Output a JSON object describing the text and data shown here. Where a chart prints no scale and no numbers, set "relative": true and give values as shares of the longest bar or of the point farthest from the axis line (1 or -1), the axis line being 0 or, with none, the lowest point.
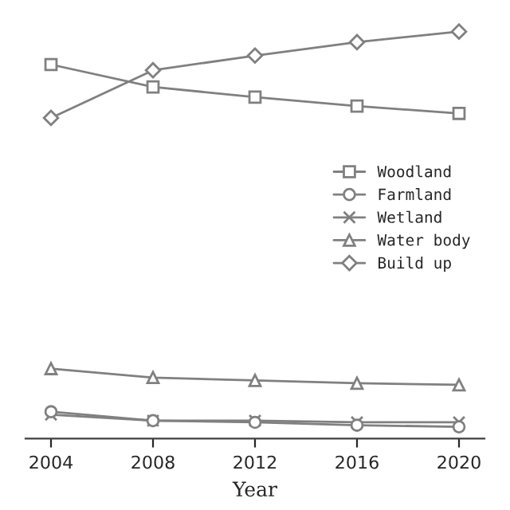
{
  "chart_data": {
    "type": "line",
    "relative": true,
    "xlabel": "Year",
    "x": [
      2004,
      2008,
      2012,
      2016,
      2020
    ],
    "xlim": [
      2003,
      2021
    ],
    "xticks": [
      2004,
      2008,
      2012,
      2016,
      2020
    ],
    "legend": "right",
    "grid": false,
    "series": [
      {
        "name": "Woodland",
        "color": "#808080",
        "marker": "square",
        "values": [
          0.919,
          0.864,
          0.839,
          0.817,
          0.799
        ]
      },
      {
        "name": "Farmland",
        "color": "#808080",
        "marker": "circle",
        "values": [
          0.066,
          0.044,
          0.04,
          0.033,
          0.029
        ]
      },
      {
        "name": "Wetland",
        "color": "#808080",
        "marker": "cross",
        "values": [
          0.059,
          0.044,
          0.044,
          0.04,
          0.04
        ]
      },
      {
        "name": "Water body",
        "color": "#808080",
        "marker": "triangle",
        "values": [
          0.172,
          0.15,
          0.143,
          0.136,
          0.132
        ]
      },
      {
        "name": "Build up",
        "color": "#808080",
        "marker": "diamond",
        "values": [
          0.788,
          0.905,
          0.941,
          0.974,
          1
        ]
      }
    ]
  }
}
